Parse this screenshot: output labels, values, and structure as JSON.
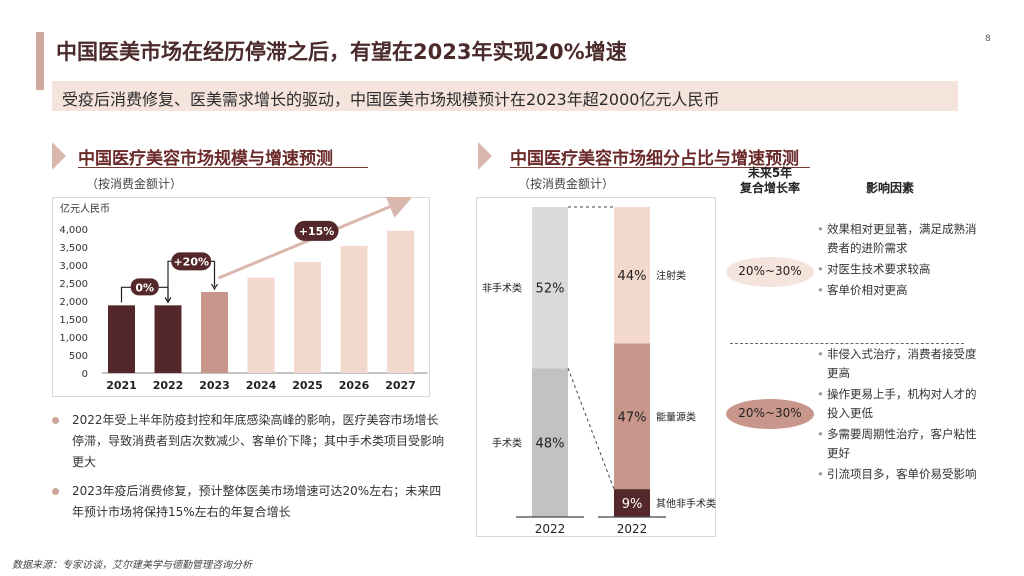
{
  "page_number": "8",
  "title": "中国医美市场在经历停滞之后，有望在2023年实现20%增速",
  "subtitle": "受疫后消费修复、医美需求增长的驱动，中国医美市场规模预计在2023年超2000亿元人民币",
  "left_section": {
    "title": "中国医疗美容市场规模与增速预测",
    "note": "（按消费金额计）",
    "bullets": [
      "2022年受上半年防疫封控和年底感染高峰的影响，医疗美容市场增长停滞，导致消费者到店次数减少、客单价下降；其中手术类项目受影响更大",
      "2023年疫后消费修复，预计整体医美市场增速可达20%左右；未来四年预计市场将保持15%左右的年复合增长"
    ]
  },
  "right_section": {
    "title": "中国医疗美容市场细分占比与增速预测",
    "note": "（按消费金额计）",
    "col_cagr": "未来5年\n复合增长率",
    "col_factors": "影响因素",
    "rows": [
      {
        "cagr": "20%~30%",
        "factors": [
          "效果相对更显著，满足成熟消费者的进阶需求",
          "对医生技术要求较高",
          "客单价相对更高"
        ]
      },
      {
        "cagr": "20%~30%",
        "factors": [
          "非侵入式治疗，消费者接受度更高",
          "操作更易上手，机构对人才的投入更低",
          "多需要周期性治疗，客户粘性更好",
          "引流项目多，客单价易受影响"
        ]
      }
    ]
  },
  "colors": {
    "dark": "#54282a",
    "mid": "#c9968b",
    "light": "#f2d8cd",
    "grey_light": "#dadada",
    "grey_mid": "#c2c2c2"
  },
  "chart_data": [
    {
      "type": "bar",
      "ylabel": "亿元人民币",
      "categories": [
        "2021",
        "2022",
        "2023",
        "2024",
        "2025",
        "2026",
        "2027"
      ],
      "values": [
        1880,
        1880,
        2250,
        2650,
        3080,
        3530,
        3950
      ],
      "ylim": [
        0,
        4000
      ],
      "yticks": [
        "0",
        "500",
        "1,000",
        "1,500",
        "2,000",
        "2,500",
        "3,000",
        "3,500",
        "4,000"
      ],
      "annotations": [
        "0%",
        "+20%",
        "+15%"
      ],
      "grid": false
    },
    {
      "type": "bar",
      "stacked": true,
      "bars": [
        {
          "label": "2022",
          "segments": [
            {
              "name": "手术类",
              "value": 48,
              "label": "48%"
            },
            {
              "name": "非手术类",
              "value": 52,
              "label": "52%"
            }
          ]
        },
        {
          "label": "2022",
          "segments": [
            {
              "name": "其他非手术类",
              "value": 9,
              "label": "9%"
            },
            {
              "name": "能量源类",
              "value": 47,
              "label": "47%"
            },
            {
              "name": "注射类",
              "value": 44,
              "label": "44%"
            }
          ]
        }
      ]
    }
  ],
  "source": "数据来源：专家访谈，艾尔建美学与德勤管理咨询分析"
}
